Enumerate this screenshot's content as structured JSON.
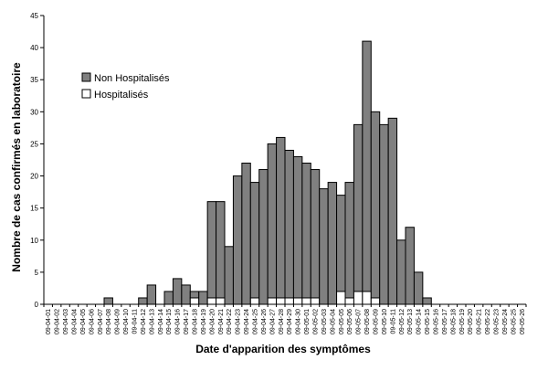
{
  "chart_data": {
    "type": "bar",
    "stacked": true,
    "xlabel": "Date d'apparition des symptômes",
    "ylabel": "Nombre de cas confirmés en laboratoire",
    "ylim": [
      0,
      45
    ],
    "yticks": [
      0,
      5,
      10,
      15,
      20,
      25,
      30,
      35,
      40,
      45
    ],
    "legend_position": "upper-left",
    "grid": false,
    "categories": [
      "09-04-01",
      "09-04-02",
      "09-04-03",
      "09-04-04",
      "09-04-05",
      "09-04-06",
      "09-04-07",
      "09-04-08",
      "09-04-09",
      "09-04-10",
      "09-04-11",
      "09-04-12",
      "09-04-13",
      "09-04-14",
      "09-04-15",
      "09-04-16",
      "09-04-17",
      "09-04-18",
      "09-04-19",
      "09-04-20",
      "09-04-21",
      "09-04-22",
      "09-04-23",
      "09-04-24",
      "09-04-25",
      "09-04-26",
      "09-04-27",
      "09-04-28",
      "09-04-29",
      "09-04-30",
      "09-05-01",
      "09-05-02",
      "09-05-03",
      "09-05-04",
      "09-05-05",
      "09-05-06",
      "09-05-07",
      "09-05-08",
      "09-05-09",
      "09-05-10",
      "09-05-11",
      "09-05-12",
      "09-05-13",
      "09-05-14",
      "09-05-15",
      "09-05-16",
      "09-05-17",
      "09-05-18",
      "09-05-19",
      "09-05-20",
      "09-05-21",
      "09-05-22",
      "09-05-23",
      "09-05-24",
      "09-05-25",
      "09-05-26"
    ],
    "series": [
      {
        "name": "Hospitalisés",
        "color": "#ffffff",
        "values": [
          0,
          0,
          0,
          0,
          0,
          0,
          0,
          0,
          0,
          0,
          0,
          0,
          0,
          0,
          0,
          0,
          0,
          1,
          0,
          1,
          1,
          0,
          0,
          0,
          1,
          0,
          1,
          1,
          1,
          1,
          1,
          1,
          0,
          0,
          2,
          1,
          2,
          2,
          1,
          0,
          0,
          0,
          0,
          0,
          0,
          0,
          0,
          0,
          0,
          0,
          0,
          0,
          0,
          0,
          0,
          0
        ]
      },
      {
        "name": "Non Hospitalisés",
        "color": "#808080",
        "values": [
          0,
          0,
          0,
          0,
          0,
          0,
          0,
          1,
          0,
          0,
          0,
          1,
          3,
          0,
          2,
          4,
          3,
          1,
          2,
          15,
          15,
          9,
          20,
          22,
          18,
          21,
          24,
          25,
          23,
          22,
          21,
          20,
          18,
          19,
          15,
          18,
          26,
          39,
          29,
          28,
          29,
          10,
          12,
          5,
          1,
          0,
          0,
          0,
          0,
          0,
          0,
          0,
          0,
          0,
          0,
          0
        ]
      }
    ]
  }
}
